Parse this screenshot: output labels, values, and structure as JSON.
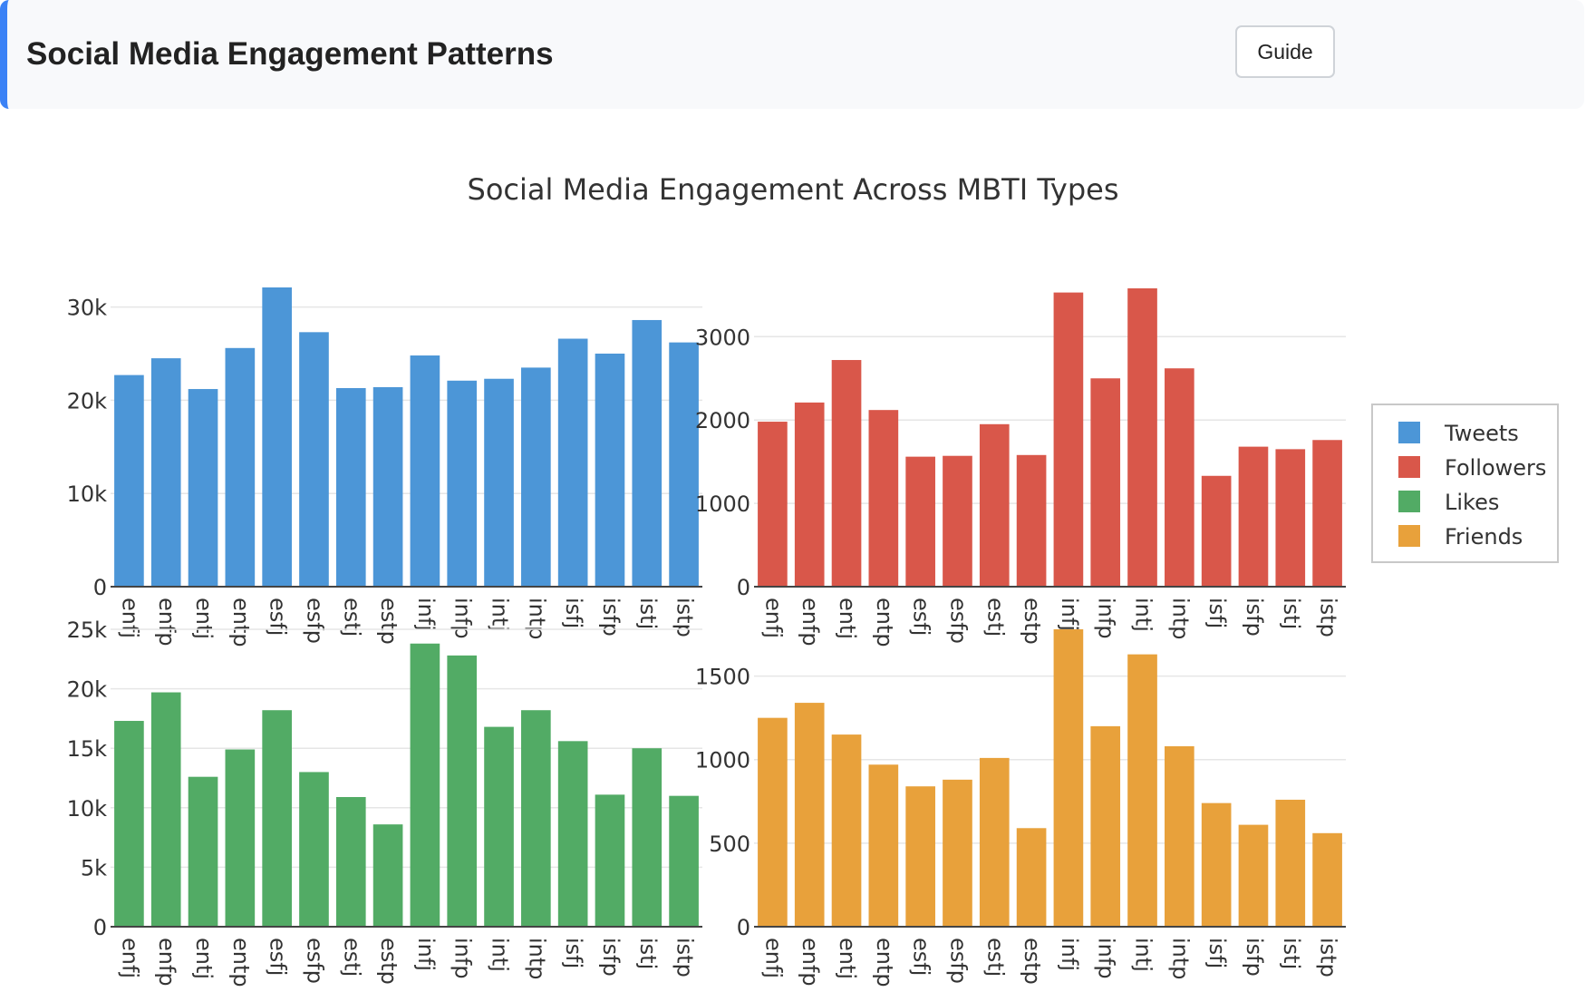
{
  "header": {
    "title": "Social Media Engagement Patterns",
    "guide_label": "Guide"
  },
  "chart_data": {
    "type": "bar",
    "title": "Social Media Engagement Across MBTI Types",
    "categories": [
      "enfj",
      "enfp",
      "entj",
      "entp",
      "esfj",
      "esfp",
      "estj",
      "estp",
      "infj",
      "infp",
      "intj",
      "intp",
      "isfj",
      "isfp",
      "istj",
      "istp"
    ],
    "legend_position": "right",
    "grid": true,
    "panels": [
      {
        "series": "Tweets",
        "color": "#4c96d7",
        "values": [
          22700,
          24500,
          21200,
          25600,
          32100,
          27300,
          21300,
          21400,
          24800,
          22100,
          22300,
          23500,
          26600,
          25000,
          28600,
          26200
        ],
        "ylim": [
          0,
          32000
        ],
        "yticks": [
          0,
          10000,
          20000,
          30000
        ],
        "yticklabels": [
          "0",
          "10k",
          "20k",
          "30k"
        ]
      },
      {
        "series": "Followers",
        "color": "#d9574a",
        "values": [
          1980,
          2210,
          2720,
          2120,
          1560,
          1570,
          1950,
          1580,
          3530,
          2500,
          3580,
          2620,
          1330,
          1680,
          1650,
          1760
        ],
        "ylim": [
          0,
          3580
        ],
        "yticks": [
          0,
          1000,
          2000,
          3000
        ],
        "yticklabels": [
          "0",
          "1000",
          "2000",
          "3000"
        ]
      },
      {
        "series": "Likes",
        "color": "#52ab65",
        "values": [
          17300,
          19700,
          12600,
          14900,
          18200,
          13000,
          10900,
          8600,
          23800,
          22800,
          16800,
          18200,
          15600,
          11100,
          15000,
          11000
        ],
        "ylim": [
          0,
          25000
        ],
        "yticks": [
          0,
          5000,
          10000,
          15000,
          20000,
          25000
        ],
        "yticklabels": [
          "0",
          "5k",
          "10k",
          "15k",
          "20k",
          "25k"
        ]
      },
      {
        "series": "Friends",
        "color": "#e8a13b",
        "values": [
          1250,
          1340,
          1150,
          970,
          840,
          880,
          1010,
          590,
          1780,
          1200,
          1630,
          1080,
          740,
          610,
          760,
          560
        ],
        "ylim": [
          0,
          1780
        ],
        "yticks": [
          0,
          500,
          1000,
          1500
        ],
        "yticklabels": [
          "0",
          "500",
          "1000",
          "1500"
        ]
      }
    ],
    "legend": [
      {
        "label": "Tweets",
        "color": "#4c96d7"
      },
      {
        "label": "Followers",
        "color": "#d9574a"
      },
      {
        "label": "Likes",
        "color": "#52ab65"
      },
      {
        "label": "Friends",
        "color": "#e8a13b"
      }
    ]
  }
}
